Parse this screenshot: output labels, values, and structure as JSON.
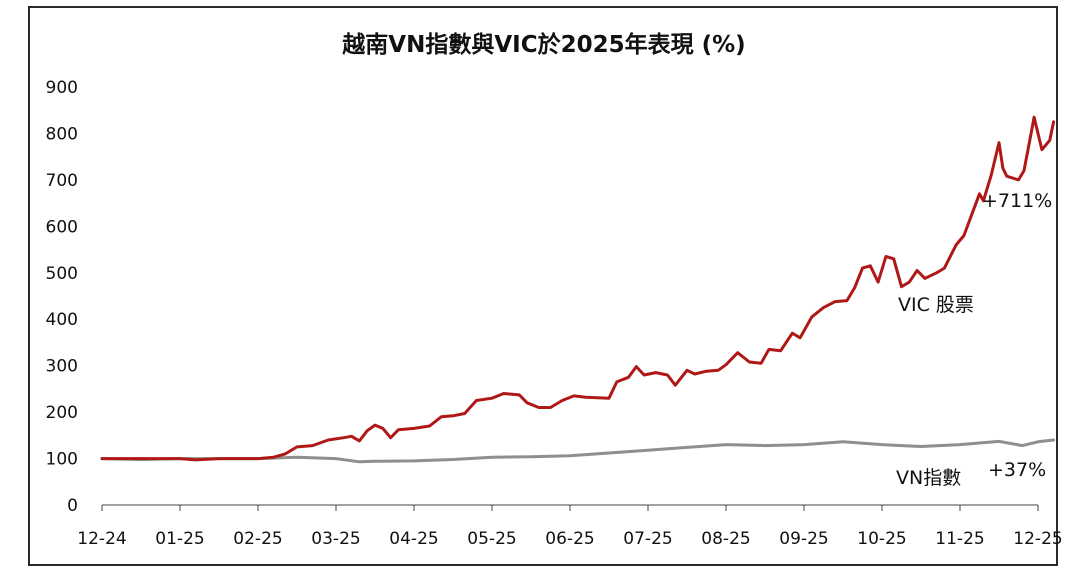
{
  "chart_data": {
    "type": "line",
    "title": "越南VN指數與VIC於2025年表現 (%)",
    "xlabel": "",
    "ylabel": "",
    "ylim": [
      0,
      900
    ],
    "yticks": [
      "0",
      "100",
      "200",
      "300",
      "400",
      "500",
      "600",
      "700",
      "800",
      "900"
    ],
    "xticks": [
      "12-24",
      "01-25",
      "02-25",
      "03-25",
      "04-25",
      "05-25",
      "06-25",
      "07-25",
      "08-25",
      "09-25",
      "10-25",
      "11-25",
      "12-25"
    ],
    "grid": false,
    "series": [
      {
        "name": "VIC 股票",
        "color": "#b01818",
        "annotation": "+711%",
        "points": [
          [
            0,
            100
          ],
          [
            0.5,
            100
          ],
          [
            1.0,
            100
          ],
          [
            1.2,
            97
          ],
          [
            1.5,
            100
          ],
          [
            2.0,
            100
          ],
          [
            2.2,
            103
          ],
          [
            2.35,
            110
          ],
          [
            2.5,
            125
          ],
          [
            2.7,
            128
          ],
          [
            2.9,
            140
          ],
          [
            3.1,
            145
          ],
          [
            3.2,
            148
          ],
          [
            3.3,
            138
          ],
          [
            3.4,
            160
          ],
          [
            3.5,
            172
          ],
          [
            3.6,
            165
          ],
          [
            3.7,
            145
          ],
          [
            3.8,
            162
          ],
          [
            4.0,
            165
          ],
          [
            4.2,
            170
          ],
          [
            4.35,
            190
          ],
          [
            4.5,
            192
          ],
          [
            4.65,
            197
          ],
          [
            4.8,
            225
          ],
          [
            5.0,
            230
          ],
          [
            5.15,
            240
          ],
          [
            5.35,
            237
          ],
          [
            5.45,
            220
          ],
          [
            5.6,
            210
          ],
          [
            5.75,
            210
          ],
          [
            5.9,
            225
          ],
          [
            6.05,
            235
          ],
          [
            6.2,
            232
          ],
          [
            6.5,
            230
          ],
          [
            6.6,
            265
          ],
          [
            6.75,
            275
          ],
          [
            6.85,
            298
          ],
          [
            6.95,
            280
          ],
          [
            7.1,
            285
          ],
          [
            7.25,
            280
          ],
          [
            7.35,
            258
          ],
          [
            7.5,
            290
          ],
          [
            7.6,
            282
          ],
          [
            7.75,
            288
          ],
          [
            7.9,
            290
          ],
          [
            8.0,
            302
          ],
          [
            8.15,
            328
          ],
          [
            8.3,
            308
          ],
          [
            8.45,
            305
          ],
          [
            8.55,
            335
          ],
          [
            8.7,
            332
          ],
          [
            8.85,
            370
          ],
          [
            8.95,
            360
          ],
          [
            9.1,
            405
          ],
          [
            9.25,
            425
          ],
          [
            9.4,
            438
          ],
          [
            9.55,
            440
          ],
          [
            9.65,
            468
          ],
          [
            9.75,
            510
          ],
          [
            9.85,
            515
          ],
          [
            9.95,
            480
          ],
          [
            10.05,
            535
          ],
          [
            10.15,
            530
          ],
          [
            10.25,
            470
          ],
          [
            10.35,
            480
          ],
          [
            10.45,
            505
          ],
          [
            10.55,
            488
          ],
          [
            10.7,
            500
          ],
          [
            10.8,
            510
          ],
          [
            10.95,
            560
          ],
          [
            11.05,
            580
          ],
          [
            11.15,
            625
          ],
          [
            11.25,
            670
          ],
          [
            11.3,
            655
          ],
          [
            11.4,
            710
          ],
          [
            11.5,
            780
          ],
          [
            11.55,
            725
          ],
          [
            11.6,
            708
          ],
          [
            11.75,
            700
          ],
          [
            11.82,
            720
          ],
          [
            11.9,
            790
          ],
          [
            11.95,
            835
          ],
          [
            12.05,
            765
          ],
          [
            12.15,
            785
          ],
          [
            12.2,
            825
          ]
        ]
      },
      {
        "name": "VN指數",
        "color": "#8f8f8f",
        "annotation": "+37%",
        "points": [
          [
            0,
            100
          ],
          [
            0.5,
            98
          ],
          [
            1.0,
            100
          ],
          [
            1.5,
            100
          ],
          [
            2.0,
            100
          ],
          [
            2.5,
            103
          ],
          [
            3.0,
            100
          ],
          [
            3.3,
            93
          ],
          [
            3.5,
            94
          ],
          [
            4.0,
            95
          ],
          [
            4.5,
            98
          ],
          [
            5.0,
            103
          ],
          [
            5.5,
            104
          ],
          [
            6.0,
            106
          ],
          [
            6.5,
            112
          ],
          [
            7.0,
            118
          ],
          [
            7.5,
            124
          ],
          [
            8.0,
            130
          ],
          [
            8.5,
            128
          ],
          [
            9.0,
            130
          ],
          [
            9.5,
            136
          ],
          [
            10.0,
            130
          ],
          [
            10.5,
            126
          ],
          [
            11.0,
            130
          ],
          [
            11.5,
            137
          ],
          [
            11.8,
            128
          ],
          [
            12.0,
            136
          ],
          [
            12.2,
            140
          ]
        ]
      }
    ]
  }
}
